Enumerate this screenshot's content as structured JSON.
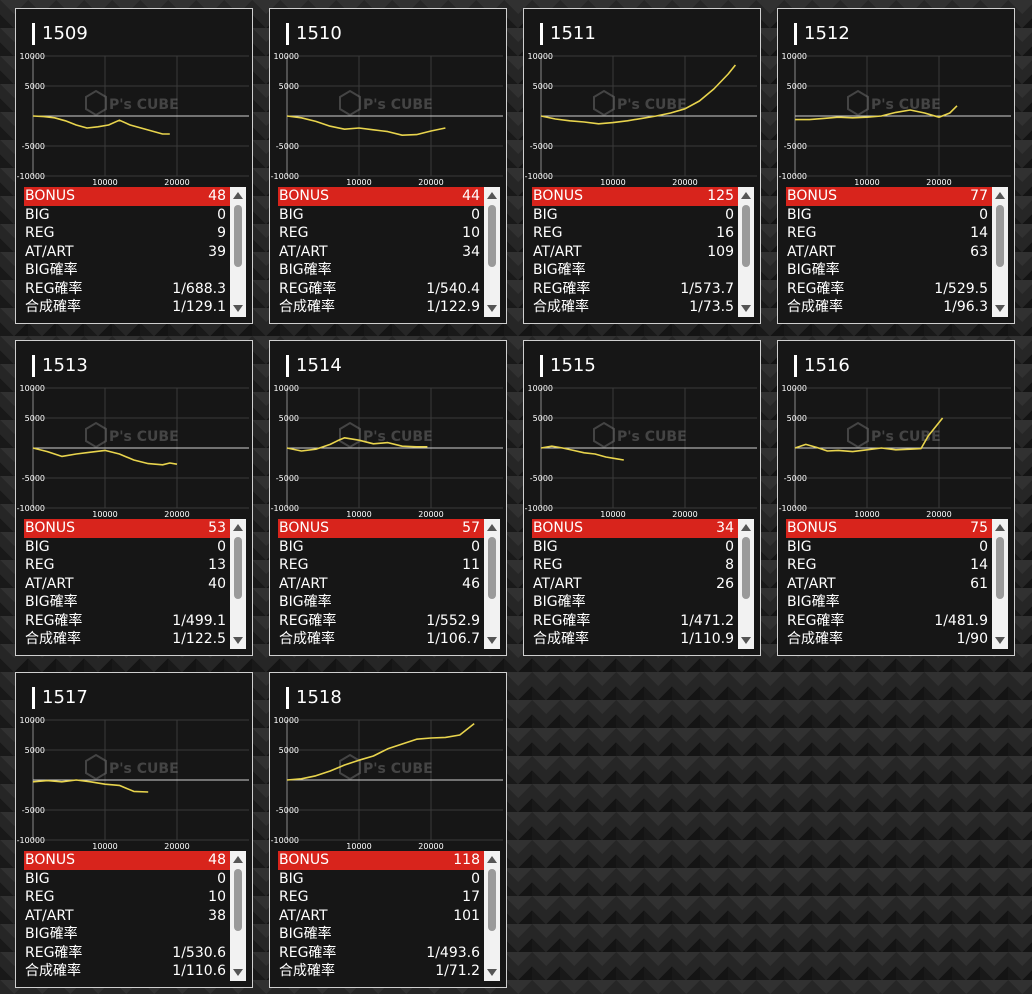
{
  "labels": {
    "bonus": "BONUS",
    "big": "BIG",
    "reg": "REG",
    "at_art": "AT/ART",
    "big_rate": "BIG確率",
    "reg_rate": "REG確率",
    "total_rate": "合成確率"
  },
  "colors": {
    "background": "#1e1e1e",
    "card_background": "#161616",
    "card_border": "#cfcfcf",
    "bonus_row": "#d8241c",
    "line": "#e8d44d",
    "axis_text": "#ffffff"
  },
  "watermark": {
    "brand": "P's CUBE",
    "icon": "cube-logo-icon"
  },
  "machines": [
    {
      "id": "1509",
      "bonus": "48",
      "big": "0",
      "reg": "9",
      "at_art": "39",
      "big_rate": "",
      "reg_rate": "1/688.3",
      "total_rate": "1/129.1"
    },
    {
      "id": "1510",
      "bonus": "44",
      "big": "0",
      "reg": "10",
      "at_art": "34",
      "big_rate": "",
      "reg_rate": "1/540.4",
      "total_rate": "1/122.9"
    },
    {
      "id": "1511",
      "bonus": "125",
      "big": "0",
      "reg": "16",
      "at_art": "109",
      "big_rate": "",
      "reg_rate": "1/573.7",
      "total_rate": "1/73.5"
    },
    {
      "id": "1512",
      "bonus": "77",
      "big": "0",
      "reg": "14",
      "at_art": "63",
      "big_rate": "",
      "reg_rate": "1/529.5",
      "total_rate": "1/96.3"
    },
    {
      "id": "1513",
      "bonus": "53",
      "big": "0",
      "reg": "13",
      "at_art": "40",
      "big_rate": "",
      "reg_rate": "1/499.1",
      "total_rate": "1/122.5"
    },
    {
      "id": "1514",
      "bonus": "57",
      "big": "0",
      "reg": "11",
      "at_art": "46",
      "big_rate": "",
      "reg_rate": "1/552.9",
      "total_rate": "1/106.7"
    },
    {
      "id": "1515",
      "bonus": "34",
      "big": "0",
      "reg": "8",
      "at_art": "26",
      "big_rate": "",
      "reg_rate": "1/471.2",
      "total_rate": "1/110.9"
    },
    {
      "id": "1516",
      "bonus": "75",
      "big": "0",
      "reg": "14",
      "at_art": "61",
      "big_rate": "",
      "reg_rate": "1/481.9",
      "total_rate": "1/90"
    },
    {
      "id": "1517",
      "bonus": "48",
      "big": "0",
      "reg": "10",
      "at_art": "38",
      "big_rate": "",
      "reg_rate": "1/530.6",
      "total_rate": "1/110.6"
    },
    {
      "id": "1518",
      "bonus": "118",
      "big": "0",
      "reg": "17",
      "at_art": "101",
      "big_rate": "",
      "reg_rate": "1/493.6",
      "total_rate": "1/71.2"
    }
  ],
  "chart_data": [
    {
      "type": "line",
      "title": "1509",
      "xlabel": "",
      "ylabel": "",
      "ylim": [
        -10000,
        10000
      ],
      "xlim": [
        0,
        30000
      ],
      "xticks": [
        10000,
        20000
      ],
      "yticks": [
        10000,
        5000,
        -5000,
        -10000
      ],
      "grid": true,
      "series": [
        {
          "x": [
            0,
            1500,
            3000,
            4500,
            6000,
            7500,
            9000,
            10500,
            12000,
            13500,
            15000,
            16500,
            18000,
            19000
          ],
          "y": [
            0,
            -100,
            -300,
            -800,
            -1500,
            -2000,
            -1800,
            -1500,
            -700,
            -1500,
            -2000,
            -2500,
            -3000,
            -3000
          ]
        }
      ]
    },
    {
      "type": "line",
      "title": "1510",
      "xlabel": "",
      "ylabel": "",
      "ylim": [
        -10000,
        10000
      ],
      "xlim": [
        0,
        30000
      ],
      "xticks": [
        10000,
        20000
      ],
      "yticks": [
        10000,
        5000,
        -5000,
        -10000
      ],
      "grid": true,
      "series": [
        {
          "x": [
            0,
            2000,
            4000,
            6000,
            8000,
            10000,
            12000,
            14000,
            16000,
            18000,
            20000,
            22000
          ],
          "y": [
            0,
            -300,
            -900,
            -1700,
            -2200,
            -2000,
            -2300,
            -2600,
            -3200,
            -3100,
            -2500,
            -2000
          ]
        }
      ]
    },
    {
      "type": "line",
      "title": "1511",
      "xlabel": "",
      "ylabel": "",
      "ylim": [
        -10000,
        10000
      ],
      "xlim": [
        0,
        30000
      ],
      "xticks": [
        10000,
        20000
      ],
      "yticks": [
        10000,
        5000,
        -5000,
        -10000
      ],
      "grid": true,
      "series": [
        {
          "x": [
            0,
            2000,
            4000,
            6000,
            8000,
            10000,
            12000,
            14000,
            16000,
            18000,
            20000,
            22000,
            24000,
            26000,
            27000
          ],
          "y": [
            0,
            -500,
            -800,
            -1000,
            -1300,
            -1100,
            -800,
            -400,
            0,
            500,
            1200,
            2500,
            4500,
            7000,
            8500
          ]
        }
      ]
    },
    {
      "type": "line",
      "title": "1512",
      "xlabel": "",
      "ylabel": "",
      "ylim": [
        -10000,
        10000
      ],
      "xlim": [
        0,
        30000
      ],
      "xticks": [
        10000,
        20000
      ],
      "yticks": [
        10000,
        5000,
        -5000,
        -10000
      ],
      "grid": true,
      "series": [
        {
          "x": [
            0,
            2000,
            4000,
            6000,
            8000,
            10000,
            12000,
            14000,
            16000,
            18000,
            20000,
            21500,
            22500
          ],
          "y": [
            -600,
            -600,
            -400,
            -200,
            -300,
            -200,
            0,
            600,
            1000,
            500,
            -200,
            500,
            1700
          ]
        }
      ]
    },
    {
      "type": "line",
      "title": "1513",
      "xlabel": "",
      "ylabel": "",
      "ylim": [
        -10000,
        10000
      ],
      "xlim": [
        0,
        30000
      ],
      "xticks": [
        10000,
        20000
      ],
      "yticks": [
        10000,
        5000,
        -5000,
        -10000
      ],
      "grid": true,
      "series": [
        {
          "x": [
            0,
            2000,
            4000,
            6000,
            8000,
            10000,
            12000,
            14000,
            16000,
            18000,
            19000,
            20000
          ],
          "y": [
            0,
            -600,
            -1400,
            -1000,
            -700,
            -400,
            -1000,
            -2000,
            -2600,
            -2800,
            -2500,
            -2700
          ]
        }
      ]
    },
    {
      "type": "line",
      "title": "1514",
      "xlabel": "",
      "ylabel": "",
      "ylim": [
        -10000,
        10000
      ],
      "xlim": [
        0,
        30000
      ],
      "xticks": [
        10000,
        20000
      ],
      "yticks": [
        10000,
        5000,
        -5000,
        -10000
      ],
      "grid": true,
      "series": [
        {
          "x": [
            0,
            2000,
            4000,
            6000,
            7000,
            8000,
            10000,
            12000,
            14000,
            16000,
            18000,
            19500
          ],
          "y": [
            0,
            -500,
            -200,
            600,
            1200,
            1700,
            1300,
            700,
            900,
            300,
            200,
            200
          ]
        }
      ]
    },
    {
      "type": "line",
      "title": "1515",
      "xlabel": "",
      "ylabel": "",
      "ylim": [
        -10000,
        10000
      ],
      "xlim": [
        0,
        30000
      ],
      "xticks": [
        10000,
        20000
      ],
      "yticks": [
        10000,
        5000,
        -5000,
        -10000
      ],
      "grid": true,
      "series": [
        {
          "x": [
            0,
            1500,
            3000,
            4500,
            6000,
            7500,
            9000,
            10500,
            11500
          ],
          "y": [
            0,
            300,
            0,
            -400,
            -800,
            -1000,
            -1500,
            -1800,
            -2000
          ]
        }
      ]
    },
    {
      "type": "line",
      "title": "1516",
      "xlabel": "",
      "ylabel": "",
      "ylim": [
        -10000,
        10000
      ],
      "xlim": [
        0,
        30000
      ],
      "xticks": [
        10000,
        20000
      ],
      "yticks": [
        10000,
        5000,
        -5000,
        -10000
      ],
      "grid": true,
      "series": [
        {
          "x": [
            0,
            1500,
            3000,
            4500,
            6000,
            8000,
            10000,
            12000,
            14000,
            16000,
            17500,
            18500,
            19500,
            20500
          ],
          "y": [
            0,
            600,
            100,
            -500,
            -400,
            -600,
            -300,
            0,
            -300,
            -200,
            -100,
            2000,
            3500,
            5000
          ]
        }
      ]
    },
    {
      "type": "line",
      "title": "1517",
      "xlabel": "",
      "ylabel": "",
      "ylim": [
        -10000,
        10000
      ],
      "xlim": [
        0,
        30000
      ],
      "xticks": [
        10000,
        20000
      ],
      "yticks": [
        10000,
        5000,
        -5000,
        -10000
      ],
      "grid": true,
      "series": [
        {
          "x": [
            0,
            2000,
            4000,
            6000,
            8000,
            10000,
            12000,
            14000,
            16000
          ],
          "y": [
            -300,
            -100,
            -300,
            0,
            -300,
            -700,
            -900,
            -1900,
            -2000
          ]
        }
      ]
    },
    {
      "type": "line",
      "title": "1518",
      "xlabel": "",
      "ylabel": "",
      "ylim": [
        -10000,
        10000
      ],
      "xlim": [
        0,
        30000
      ],
      "xticks": [
        10000,
        20000
      ],
      "yticks": [
        10000,
        5000,
        -5000,
        -10000
      ],
      "grid": true,
      "series": [
        {
          "x": [
            0,
            2000,
            4000,
            6000,
            8000,
            10000,
            12000,
            14000,
            16000,
            18000,
            20000,
            22000,
            24000,
            26000
          ],
          "y": [
            0,
            200,
            700,
            1500,
            2500,
            3300,
            4000,
            5200,
            6000,
            6800,
            7000,
            7100,
            7500,
            9400
          ]
        }
      ]
    }
  ]
}
